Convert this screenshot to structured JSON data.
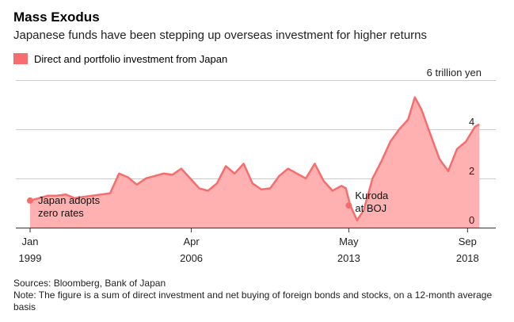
{
  "header": {
    "title": "Mass Exodus",
    "subtitle": "Japanese funds have been stepping up overseas investment for higher returns"
  },
  "legend": {
    "label": "Direct and portfolio investment from Japan",
    "color": "#f76d6d"
  },
  "footer": {
    "source": "Sources: Bloomberg, Bank of Japan",
    "note": "Note: The figure is a sum of direct investment and net buying of foreign bonds and stocks, on a 12-month average basis"
  },
  "colors": {
    "line": "#f76d6d",
    "fill": "#ffb1b1",
    "grid": "#cccccc",
    "axis": "#333333"
  },
  "chart_data": {
    "type": "area",
    "title": "Mass Exodus",
    "subtitle": "Japanese funds have been stepping up overseas investment for higher returns",
    "ylabel": "",
    "ylim": [
      0,
      6
    ],
    "y_ticks": [
      {
        "value": 0,
        "label": "0"
      },
      {
        "value": 2,
        "label": "2"
      },
      {
        "value": 4,
        "label": "4"
      },
      {
        "value": 6,
        "label": "6 trillion yen"
      }
    ],
    "xlim": [
      1999.0,
      2019.3
    ],
    "x_ticks": [
      {
        "value": 1999.0,
        "month": "Jan",
        "year": "1999"
      },
      {
        "value": 2006.25,
        "month": "Apr",
        "year": "2006"
      },
      {
        "value": 2013.33,
        "month": "May",
        "year": "2013"
      },
      {
        "value": 2018.67,
        "month": "Sep",
        "year": "2018"
      }
    ],
    "grid": true,
    "series": [
      {
        "name": "Direct and portfolio investment from Japan",
        "x": [
          1999.0,
          1999.4,
          1999.8,
          2000.2,
          2000.6,
          2001.0,
          2001.4,
          2001.8,
          2002.2,
          2002.6,
          2003.0,
          2003.4,
          2003.8,
          2004.2,
          2004.6,
          2005.0,
          2005.4,
          2005.8,
          2006.2,
          2006.6,
          2007.0,
          2007.4,
          2007.8,
          2008.2,
          2008.6,
          2009.0,
          2009.4,
          2009.8,
          2010.2,
          2010.6,
          2011.0,
          2011.4,
          2011.8,
          2012.2,
          2012.6,
          2013.0,
          2013.2,
          2013.4,
          2013.7,
          2014.0,
          2014.4,
          2014.8,
          2015.2,
          2015.6,
          2016.0,
          2016.3,
          2016.6,
          2017.0,
          2017.4,
          2017.8,
          2018.2,
          2018.6,
          2019.0,
          2019.2
        ],
        "values": [
          1.1,
          1.2,
          1.3,
          1.3,
          1.35,
          1.2,
          1.25,
          1.3,
          1.35,
          1.4,
          2.2,
          2.05,
          1.75,
          2.0,
          2.1,
          2.2,
          2.15,
          2.4,
          2.0,
          1.6,
          1.5,
          1.8,
          2.5,
          2.2,
          2.6,
          1.8,
          1.55,
          1.6,
          2.1,
          2.4,
          2.2,
          2.0,
          2.6,
          1.9,
          1.5,
          1.7,
          1.6,
          0.9,
          0.3,
          0.7,
          2.0,
          2.7,
          3.5,
          4.0,
          4.4,
          5.3,
          4.8,
          3.8,
          2.8,
          2.3,
          3.2,
          3.5,
          4.1,
          4.2
        ]
      }
    ],
    "annotations": [
      {
        "x": 1999.0,
        "value": 1.1,
        "text": "Japan adopts zero rates"
      },
      {
        "x": 2013.33,
        "value": 0.9,
        "text": "Kuroda at BOJ"
      }
    ]
  }
}
